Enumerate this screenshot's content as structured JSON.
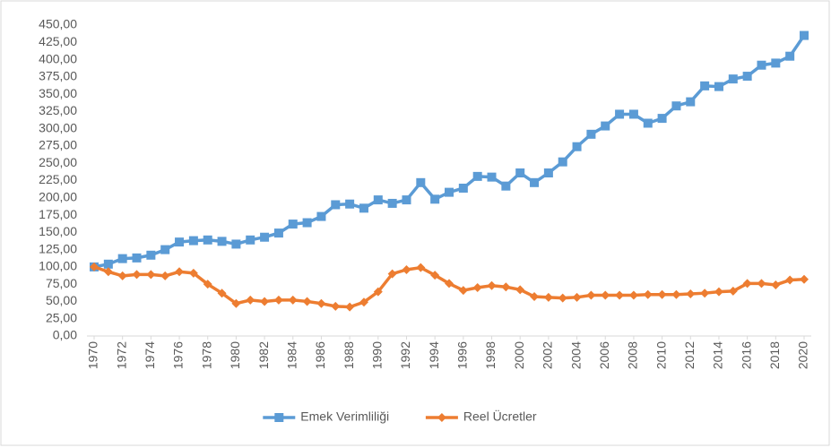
{
  "chart_data": {
    "type": "line",
    "x": [
      1970,
      1971,
      1972,
      1973,
      1974,
      1975,
      1976,
      1977,
      1978,
      1979,
      1980,
      1981,
      1982,
      1983,
      1984,
      1985,
      1986,
      1987,
      1988,
      1989,
      1990,
      1991,
      1992,
      1993,
      1994,
      1995,
      1996,
      1997,
      1998,
      1999,
      2000,
      2001,
      2002,
      2003,
      2004,
      2005,
      2006,
      2007,
      2008,
      2009,
      2010,
      2011,
      2012,
      2013,
      2014,
      2015,
      2016,
      2017,
      2018,
      2019,
      2020
    ],
    "series": [
      {
        "name": "Emek Verimliliği",
        "color": "#5b9bd5",
        "marker": "square",
        "values": [
          100,
          104,
          112,
          113,
          117,
          125,
          136,
          138,
          139,
          137,
          133,
          139,
          143,
          149,
          162,
          164,
          173,
          190,
          191,
          185,
          197,
          192,
          197,
          222,
          198,
          208,
          214,
          231,
          230,
          217,
          236,
          222,
          236,
          252,
          274,
          292,
          304,
          321,
          321,
          308,
          315,
          333,
          339,
          362,
          361,
          372,
          376,
          392,
          395,
          405,
          435
        ]
      },
      {
        "name": "Reel Ücretler",
        "color": "#ed7d31",
        "marker": "diamond",
        "values": [
          100,
          93,
          87,
          89,
          89,
          87,
          93,
          91,
          75,
          62,
          47,
          52,
          50,
          52,
          52,
          50,
          47,
          43,
          42,
          49,
          64,
          90,
          96,
          99,
          88,
          76,
          66,
          70,
          73,
          71,
          67,
          57,
          56,
          55,
          56,
          59,
          59,
          59,
          59,
          60,
          60,
          60,
          61,
          62,
          64,
          65,
          76,
          76,
          74,
          81,
          82
        ]
      }
    ],
    "xlim": [
      1970,
      2020
    ],
    "xticks": [
      1970,
      1972,
      1974,
      1976,
      1978,
      1980,
      1982,
      1984,
      1986,
      1988,
      1990,
      1992,
      1994,
      1996,
      1998,
      2000,
      2002,
      2004,
      2006,
      2008,
      2010,
      2012,
      2014,
      2016,
      2018,
      2020
    ],
    "ylim": [
      0,
      450
    ],
    "yticks": [
      {
        "value": 0,
        "label": "0,00"
      },
      {
        "value": 25,
        "label": "25,00"
      },
      {
        "value": 50,
        "label": "50,00"
      },
      {
        "value": 75,
        "label": "75,00"
      },
      {
        "value": 100,
        "label": "100,00"
      },
      {
        "value": 125,
        "label": "125,00"
      },
      {
        "value": 150,
        "label": "150,00"
      },
      {
        "value": 175,
        "label": "175,00"
      },
      {
        "value": 200,
        "label": "200,00"
      },
      {
        "value": 225,
        "label": "225,00"
      },
      {
        "value": 250,
        "label": "250,00"
      },
      {
        "value": 275,
        "label": "275,00"
      },
      {
        "value": 300,
        "label": "300,00"
      },
      {
        "value": 325,
        "label": "325,00"
      },
      {
        "value": 350,
        "label": "350,00"
      },
      {
        "value": 375,
        "label": "375,00"
      },
      {
        "value": 400,
        "label": "400,00"
      },
      {
        "value": 425,
        "label": "425,00"
      },
      {
        "value": 450,
        "label": "450,00"
      }
    ],
    "grid": false,
    "legend": "bottom"
  }
}
